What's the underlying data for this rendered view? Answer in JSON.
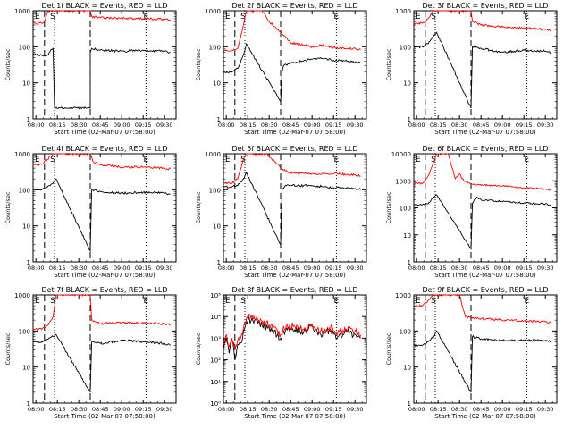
{
  "figure": {
    "xlabel": "Start Time (02-Mar-07 07:58:00)",
    "ylabel": "Counts/sec",
    "x_ticks": [
      "08:00",
      "08:15",
      "08:30",
      "08:45",
      "09:00",
      "09:15",
      "09:30"
    ],
    "marker_labels": [
      "E",
      "S",
      "E"
    ],
    "colors": {
      "events": "#000000",
      "lld": "#ff0000"
    }
  },
  "chart_data": [
    {
      "type": "line",
      "title": "Det 1f BLACK = Events, RED = LLD",
      "ylim": [
        1,
        1000
      ],
      "y_ticks": [
        "1",
        "10",
        "100",
        "1000"
      ],
      "ylabel": "Counts/sec",
      "xlabel": "Start Time (02-Mar-07 07:58:00)",
      "x_ticks": [
        "08:00",
        "08:15",
        "08:30",
        "08:45",
        "09:00",
        "09:15",
        "09:30"
      ],
      "markers": {
        "E_start": "08:06",
        "S": "08:13",
        "E_end": "09:17"
      },
      "series": [
        {
          "name": "Events",
          "x": [
            "07:58",
            "08:04",
            "08:06",
            "08:08",
            "08:10",
            "08:12",
            "08:13",
            "08:38",
            "08:38",
            "08:39",
            "08:45",
            "09:00",
            "09:15",
            "09:30",
            "09:34"
          ],
          "values": [
            60,
            60,
            55,
            60,
            75,
            90,
            2,
            2,
            70,
            90,
            80,
            75,
            80,
            75,
            70
          ]
        },
        {
          "name": "LLD",
          "x": [
            "07:58",
            "08:04",
            "08:06",
            "08:08",
            "08:10",
            "08:12",
            "08:13",
            "08:38",
            "08:39",
            "08:45",
            "09:00",
            "09:15",
            "09:30",
            "09:34"
          ],
          "values": [
            450,
            450,
            500,
            900,
            1000,
            1000,
            1000,
            1000,
            700,
            640,
            620,
            600,
            580,
            550
          ]
        }
      ]
    },
    {
      "type": "line",
      "title": "Det 2f BLACK = Events, RED = LLD",
      "ylim": [
        1,
        1000
      ],
      "y_ticks": [
        "1",
        "10",
        "100",
        "1000"
      ],
      "ylabel": "Counts/sec",
      "xlabel": "Start Time (02-Mar-07 07:58:00)",
      "x_ticks": [
        "08:00",
        "08:15",
        "08:30",
        "08:45",
        "09:00",
        "09:15",
        "09:30"
      ],
      "markers": {
        "E_start": "08:06",
        "S": "08:13",
        "E_end": "09:17"
      },
      "series": [
        {
          "name": "Events",
          "x": [
            "07:58",
            "08:04",
            "08:08",
            "08:12",
            "08:14",
            "08:38",
            "08:39",
            "08:40",
            "08:45",
            "09:00",
            "09:06",
            "09:15",
            "09:25",
            "09:34"
          ],
          "values": [
            20,
            20,
            25,
            60,
            120,
            3,
            20,
            30,
            35,
            45,
            50,
            42,
            40,
            35
          ]
        },
        {
          "name": "LLD",
          "x": [
            "07:58",
            "08:04",
            "08:08",
            "08:12",
            "08:14",
            "08:25",
            "08:30",
            "08:38",
            "08:45",
            "09:00",
            "09:06",
            "09:15",
            "09:25",
            "09:34"
          ],
          "values": [
            80,
            80,
            90,
            400,
            1000,
            1000,
            500,
            250,
            130,
            100,
            110,
            95,
            90,
            85
          ]
        }
      ]
    },
    {
      "type": "line",
      "title": "Det 3f BLACK = Events, RED = LLD",
      "ylim": [
        1,
        1000
      ],
      "y_ticks": [
        "1",
        "10",
        "100",
        "1000"
      ],
      "ylabel": "Counts/sec",
      "xlabel": "Start Time (02-Mar-07 07:58:00)",
      "x_ticks": [
        "08:00",
        "08:15",
        "08:30",
        "08:45",
        "09:00",
        "09:15",
        "09:30"
      ],
      "markers": {
        "E_start": "08:06",
        "S": "08:13",
        "E_end": "09:17"
      },
      "series": [
        {
          "name": "Events",
          "x": [
            "07:58",
            "08:04",
            "08:08",
            "08:12",
            "08:14",
            "08:38",
            "08:39",
            "08:45",
            "09:00",
            "09:15",
            "09:30",
            "09:34"
          ],
          "values": [
            100,
            100,
            120,
            200,
            250,
            2,
            100,
            90,
            70,
            80,
            75,
            70
          ]
        },
        {
          "name": "LLD",
          "x": [
            "07:58",
            "08:04",
            "08:08",
            "08:12",
            "08:14",
            "08:38",
            "08:39",
            "08:45",
            "09:00",
            "09:15",
            "09:30",
            "09:34"
          ],
          "values": [
            450,
            450,
            600,
            1000,
            1000,
            1000,
            500,
            400,
            350,
            330,
            300,
            280
          ]
        }
      ]
    },
    {
      "type": "line",
      "title": "Det 4f BLACK = Events, RED = LLD",
      "ylim": [
        1,
        1000
      ],
      "y_ticks": [
        "1",
        "10",
        "100",
        "1000"
      ],
      "ylabel": "Counts/sec",
      "xlabel": "Start Time (02-Mar-07 07:58:00)",
      "x_ticks": [
        "08:00",
        "08:15",
        "08:30",
        "08:45",
        "09:00",
        "09:15",
        "09:30"
      ],
      "markers": {
        "E_start": "08:06",
        "S": "08:13",
        "E_end": "09:17"
      },
      "series": [
        {
          "name": "Events",
          "x": [
            "07:58",
            "08:04",
            "08:08",
            "08:12",
            "08:14",
            "08:38",
            "08:39",
            "08:45",
            "09:00",
            "09:15",
            "09:30",
            "09:34"
          ],
          "values": [
            100,
            100,
            120,
            150,
            200,
            2,
            100,
            90,
            80,
            85,
            80,
            75
          ]
        },
        {
          "name": "LLD",
          "x": [
            "07:58",
            "08:04",
            "08:08",
            "08:12",
            "08:14",
            "08:38",
            "08:40",
            "08:45",
            "09:00",
            "09:15",
            "09:30",
            "09:34"
          ],
          "values": [
            500,
            500,
            700,
            1000,
            1000,
            1000,
            600,
            500,
            420,
            430,
            400,
            380
          ]
        }
      ]
    },
    {
      "type": "line",
      "title": "Det 5f BLACK = Events, RED = LLD",
      "ylim": [
        1,
        1000
      ],
      "y_ticks": [
        "1",
        "10",
        "100",
        "1000"
      ],
      "ylabel": "Counts/sec",
      "xlabel": "Start Time (02-Mar-07 07:58:00)",
      "x_ticks": [
        "08:00",
        "08:15",
        "08:30",
        "08:45",
        "09:00",
        "09:15",
        "09:30"
      ],
      "markers": {
        "E_start": "08:06",
        "S": "08:13",
        "E_end": "09:17"
      },
      "series": [
        {
          "name": "Events",
          "x": [
            "07:58",
            "08:04",
            "08:08",
            "08:12",
            "08:14",
            "08:38",
            "08:39",
            "08:42",
            "08:45",
            "09:00",
            "09:15",
            "09:30",
            "09:34"
          ],
          "values": [
            120,
            120,
            130,
            200,
            300,
            3,
            100,
            130,
            130,
            130,
            115,
            110,
            100
          ]
        },
        {
          "name": "LLD",
          "x": [
            "07:58",
            "08:04",
            "08:08",
            "08:12",
            "08:14",
            "08:28",
            "08:34",
            "08:40",
            "08:45",
            "09:00",
            "09:15",
            "09:30",
            "09:34"
          ],
          "values": [
            150,
            150,
            200,
            700,
            1000,
            1000,
            600,
            350,
            300,
            280,
            280,
            260,
            240
          ]
        }
      ]
    },
    {
      "type": "line",
      "title": "Det 6f BLACK = Events, RED = LLD",
      "ylim": [
        1,
        10000
      ],
      "y_ticks": [
        "1",
        "10",
        "100",
        "1000",
        "10000"
      ],
      "ylabel": "Counts/sec",
      "xlabel": "Start Time (02-Mar-07 07:58:00)",
      "x_ticks": [
        "08:00",
        "08:15",
        "08:30",
        "08:45",
        "09:00",
        "09:15",
        "09:30"
      ],
      "markers": {
        "E_start": "08:06",
        "S": "08:13",
        "E_end": "09:17"
      },
      "series": [
        {
          "name": "Events",
          "x": [
            "07:58",
            "08:04",
            "08:08",
            "08:12",
            "08:14",
            "08:38",
            "08:39",
            "08:42",
            "08:45",
            "09:00",
            "09:15",
            "09:30",
            "09:34"
          ],
          "values": [
            130,
            130,
            140,
            250,
            300,
            3,
            150,
            250,
            200,
            170,
            150,
            140,
            130
          ]
        },
        {
          "name": "LLD",
          "x": [
            "07:58",
            "08:04",
            "08:08",
            "08:12",
            "08:14",
            "08:22",
            "08:27",
            "08:30",
            "08:33",
            "08:38",
            "08:42",
            "09:00",
            "09:15",
            "09:30",
            "09:34"
          ],
          "values": [
            800,
            800,
            1500,
            5000,
            10000,
            10000,
            1200,
            1800,
            1000,
            800,
            700,
            650,
            550,
            500,
            450
          ]
        }
      ]
    },
    {
      "type": "line",
      "title": "Det 7f BLACK = Events, RED = LLD",
      "ylim": [
        1,
        1000
      ],
      "y_ticks": [
        "1",
        "10",
        "100",
        "1000"
      ],
      "ylabel": "Counts/sec",
      "xlabel": "Start Time (02-Mar-07 07:58:00)",
      "x_ticks": [
        "08:00",
        "08:15",
        "08:30",
        "08:45",
        "09:00",
        "09:15",
        "09:30"
      ],
      "markers": {
        "E_start": "08:06",
        "S": "08:13",
        "E_end": "09:17"
      },
      "series": [
        {
          "name": "Events",
          "x": [
            "07:58",
            "08:04",
            "08:08",
            "08:12",
            "08:14",
            "08:38",
            "08:39",
            "08:45",
            "09:00",
            "09:15",
            "09:30",
            "09:34"
          ],
          "values": [
            50,
            50,
            60,
            70,
            80,
            2,
            50,
            45,
            55,
            50,
            45,
            40
          ]
        },
        {
          "name": "LLD",
          "x": [
            "07:58",
            "08:04",
            "08:08",
            "08:12",
            "08:14",
            "08:38",
            "08:39",
            "08:45",
            "09:00",
            "09:15",
            "09:30",
            "09:34"
          ],
          "values": [
            110,
            110,
            140,
            250,
            1000,
            1000,
            200,
            160,
            170,
            165,
            160,
            150
          ]
        }
      ]
    },
    {
      "type": "line",
      "title": "Det 8f BLACK = Events, RED = LLD",
      "ylim": [
        1,
        100000
      ],
      "y_ticks": [
        "10⁰",
        "10¹",
        "10²",
        "10³",
        "10⁴",
        "10⁵"
      ],
      "ylabel": "Counts/sec",
      "xlabel": "Start Time (02-Mar-07 07:58:00)",
      "x_ticks": [
        "08:00",
        "08:15",
        "08:30",
        "08:45",
        "09:00",
        "09:15",
        "09:30"
      ],
      "markers": {
        "E_start": "08:06",
        "S": "08:13",
        "E_end": "09:17"
      },
      "series": [
        {
          "name": "Events",
          "x": [
            "07:58",
            "08:00",
            "08:02",
            "08:04",
            "08:06",
            "08:08",
            "08:10",
            "08:12",
            "08:14",
            "08:18",
            "08:22",
            "08:30",
            "08:38",
            "08:42",
            "08:48",
            "08:54",
            "09:00",
            "09:06",
            "09:12",
            "09:18",
            "09:24",
            "09:30",
            "09:34"
          ],
          "values": [
            300,
            1000,
            200,
            800,
            100,
            500,
            600,
            2000,
            6000,
            8000,
            5000,
            3000,
            1000,
            3000,
            2500,
            1800,
            3500,
            1500,
            2400,
            1200,
            2000,
            1500,
            1000
          ]
        },
        {
          "name": "LLD",
          "x": [
            "07:58",
            "08:00",
            "08:02",
            "08:04",
            "08:06",
            "08:08",
            "08:10",
            "08:12",
            "08:14",
            "08:18",
            "08:22",
            "08:30",
            "08:38",
            "08:42",
            "08:48",
            "08:54",
            "09:00",
            "09:06",
            "09:12",
            "09:18",
            "09:24",
            "09:30",
            "09:34"
          ],
          "values": [
            500,
            1500,
            400,
            1000,
            300,
            800,
            1000,
            3000,
            8000,
            12000,
            7000,
            4000,
            1500,
            4000,
            3500,
            2500,
            4500,
            2200,
            3000,
            1800,
            2600,
            2000,
            1400
          ]
        }
      ]
    },
    {
      "type": "line",
      "title": "Det 9f BLACK = Events, RED = LLD",
      "ylim": [
        1,
        1000
      ],
      "y_ticks": [
        "1",
        "10",
        "100",
        "1000"
      ],
      "ylabel": "Counts/sec",
      "xlabel": "Start Time (02-Mar-07 07:58:00)",
      "x_ticks": [
        "08:00",
        "08:15",
        "08:30",
        "08:45",
        "09:00",
        "09:15",
        "09:30"
      ],
      "markers": {
        "E_start": "08:06",
        "S": "08:13",
        "E_end": "09:17"
      },
      "series": [
        {
          "name": "Events",
          "x": [
            "07:58",
            "08:04",
            "08:08",
            "08:12",
            "08:14",
            "08:38",
            "08:39",
            "08:45",
            "09:00",
            "09:15",
            "09:30",
            "09:34"
          ],
          "values": [
            40,
            40,
            50,
            70,
            100,
            2,
            70,
            60,
            55,
            55,
            55,
            50
          ]
        },
        {
          "name": "LLD",
          "x": [
            "07:58",
            "08:04",
            "08:08",
            "08:12",
            "08:14",
            "08:30",
            "08:34",
            "08:45",
            "09:00",
            "09:15",
            "09:30",
            "09:34"
          ],
          "values": [
            500,
            500,
            700,
            1000,
            1000,
            1000,
            250,
            220,
            200,
            190,
            180,
            170
          ]
        }
      ]
    }
  ]
}
